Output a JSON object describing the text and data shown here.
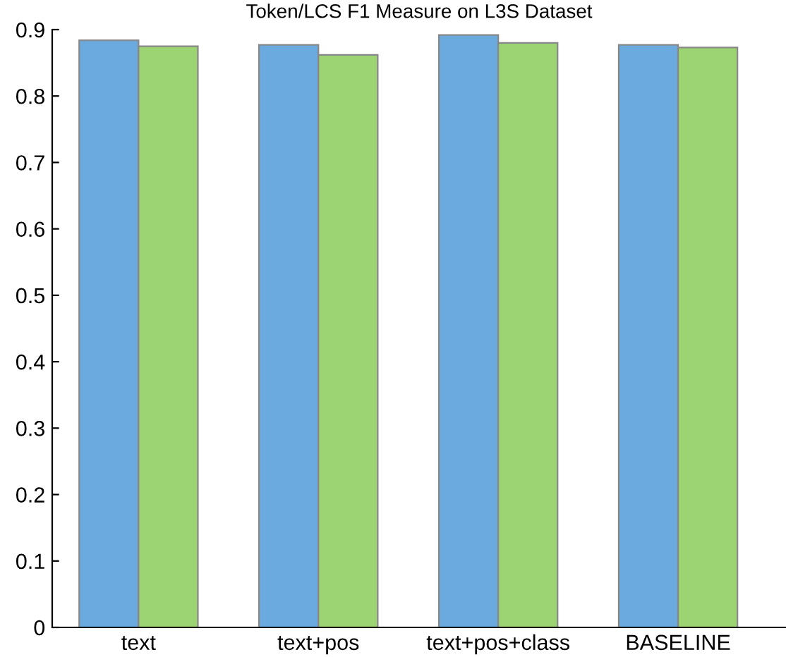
{
  "chart_data": {
    "type": "bar",
    "title": "Token/LCS F1 Measure on L3S Dataset",
    "categories": [
      "text",
      "text+pos",
      "text+pos+class",
      "BASELINE"
    ],
    "series": [
      {
        "color": "#6aaade",
        "values": [
          0.884,
          0.877,
          0.892,
          0.877
        ]
      },
      {
        "color": "#9dd473",
        "values": [
          0.875,
          0.862,
          0.88,
          0.873
        ]
      }
    ],
    "ylim": [
      0,
      0.9
    ],
    "yticks": [
      0,
      0.1,
      0.2,
      0.3,
      0.4,
      0.5,
      0.6,
      0.7,
      0.8,
      0.9
    ],
    "grid": false,
    "legend": false
  }
}
